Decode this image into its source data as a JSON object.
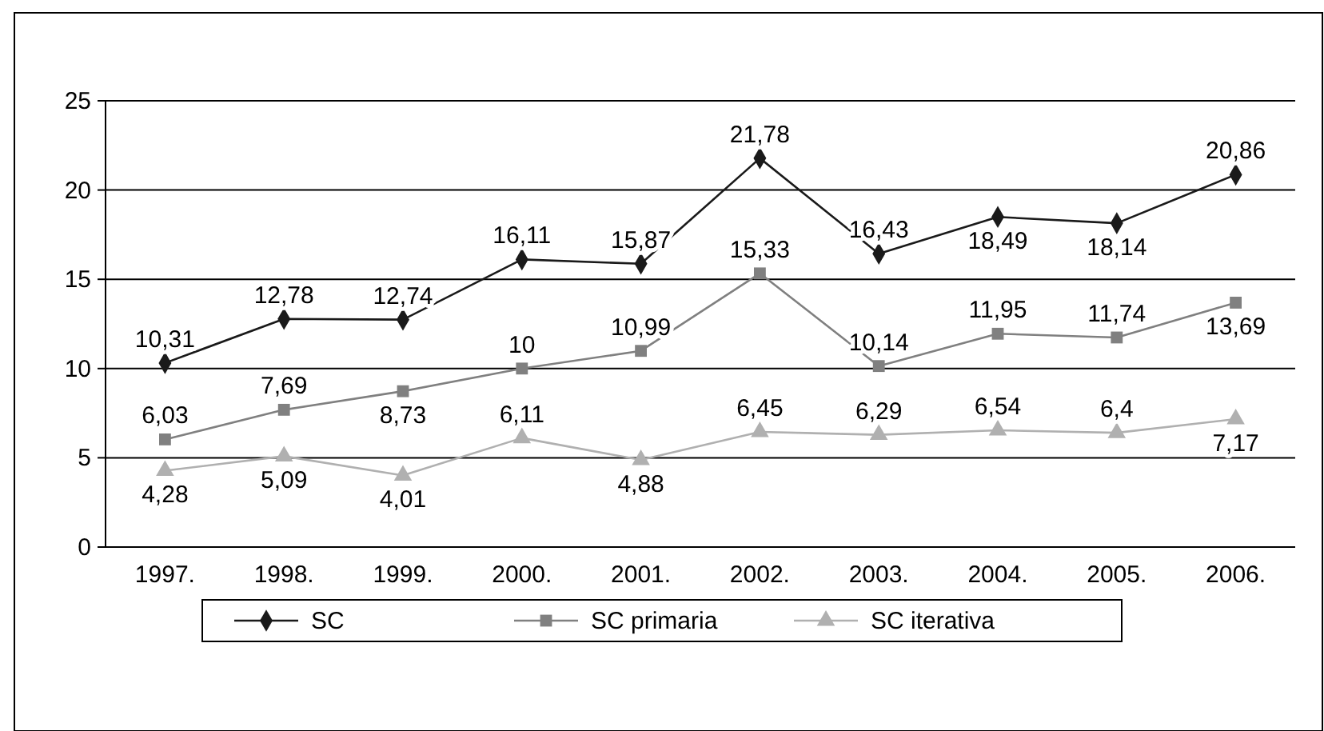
{
  "chart_data": {
    "type": "line",
    "categories": [
      "1997.",
      "1998.",
      "1999.",
      "2000.",
      "2001.",
      "2002.",
      "2003.",
      "2004.",
      "2005.",
      "2006."
    ],
    "ylim": [
      0,
      25
    ],
    "yticks": [
      0,
      5,
      10,
      15,
      20,
      25
    ],
    "grid": "y",
    "legend": "bottom",
    "line_style": "solid",
    "series": [
      {
        "name": "SC",
        "color": "#1a1a1a",
        "marker": "diamond",
        "values": [
          10.31,
          12.78,
          12.74,
          16.11,
          15.87,
          21.78,
          16.43,
          18.49,
          18.14,
          20.86
        ],
        "value_labels": [
          "10,31",
          "12,78",
          "12,74",
          "16,11",
          "15,87",
          "21,78",
          "16,43",
          "18,49",
          "18,14",
          "20,86"
        ]
      },
      {
        "name": "SC primaria",
        "color": "#808080",
        "marker": "square",
        "values": [
          6.03,
          7.69,
          8.73,
          10,
          10.99,
          15.33,
          10.14,
          11.95,
          11.74,
          13.69
        ],
        "value_labels": [
          "6,03",
          "7,69",
          "8,73",
          "10",
          "10,99",
          "15,33",
          "10,14",
          "11,95",
          "11,74",
          "13,69"
        ]
      },
      {
        "name": "SC iterativa",
        "color": "#b0b0b0",
        "marker": "triangle",
        "values": [
          4.28,
          5.09,
          4.01,
          6.11,
          4.88,
          6.45,
          6.29,
          6.54,
          6.4,
          7.17
        ],
        "value_labels": [
          "4,28",
          "5,09",
          "4,01",
          "6,11",
          "4,88",
          "6,45",
          "6,29",
          "6,54",
          "6,4",
          "7,17"
        ]
      }
    ]
  }
}
